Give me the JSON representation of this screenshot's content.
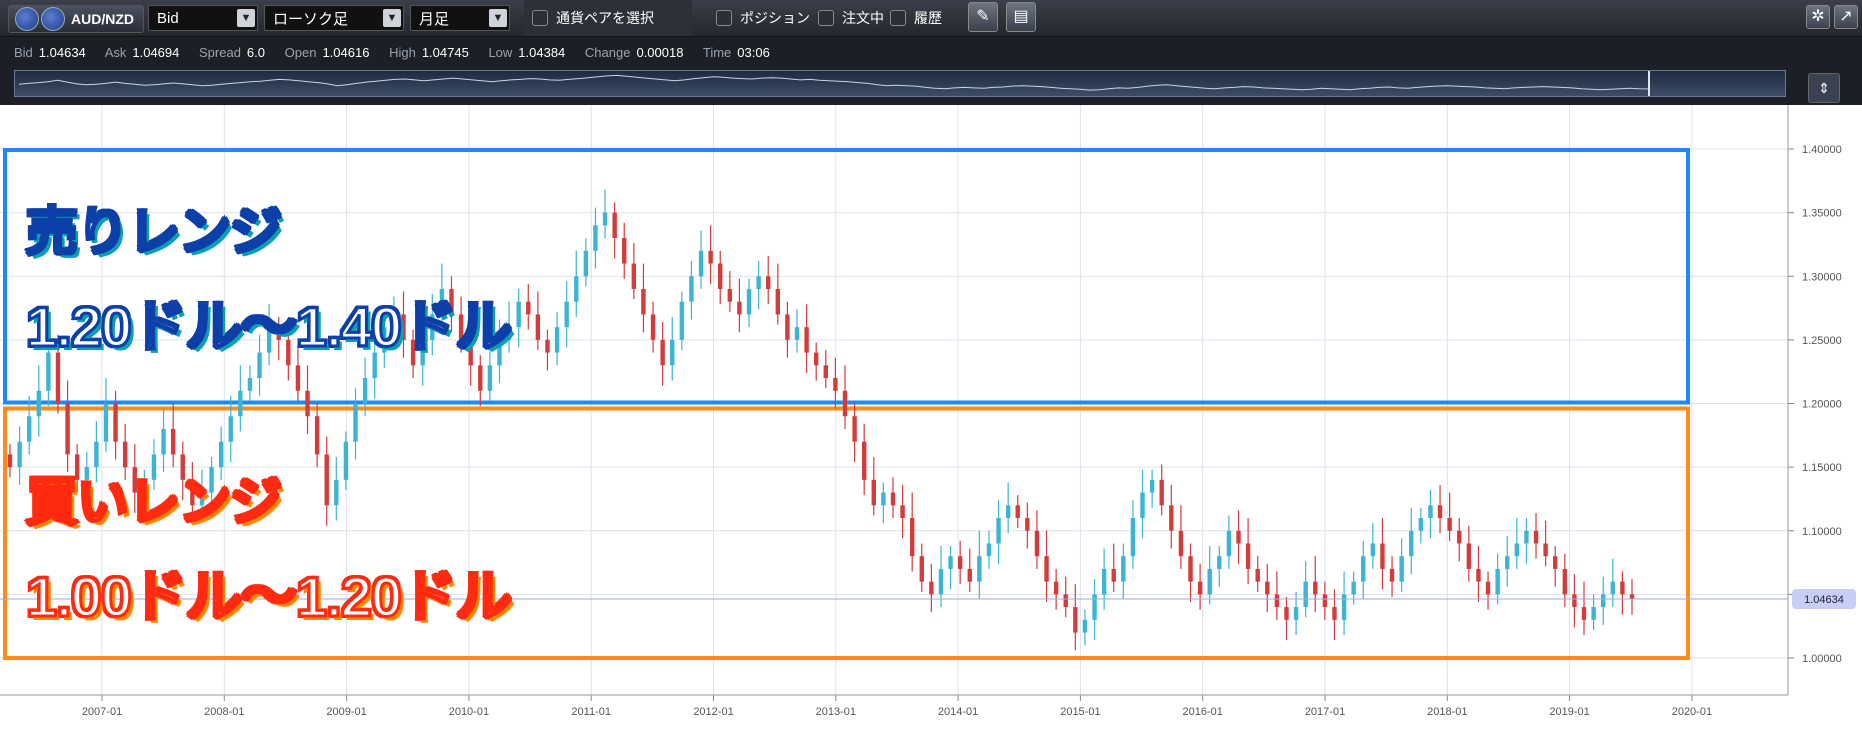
{
  "toolbar": {
    "pair": "AUD/NZD",
    "price_type": "Bid",
    "chart_type": "ローソク足",
    "timeframe": "月足",
    "select_pair": "通貨ペアを選択",
    "positions": "ポジション",
    "orders": "注文中",
    "history": "履歴"
  },
  "info": [
    {
      "label": "Bid",
      "value": "1.04634"
    },
    {
      "label": "Ask",
      "value": "1.04694"
    },
    {
      "label": "Spread",
      "value": "6.0"
    },
    {
      "label": "Open",
      "value": "1.04616"
    },
    {
      "label": "High",
      "value": "1.04745"
    },
    {
      "label": "Low",
      "value": "1.04384"
    },
    {
      "label": "Change",
      "value": "0.00018"
    },
    {
      "label": "Time",
      "value": "03:06"
    }
  ],
  "overlays": {
    "sell_title": "売りレンジ",
    "sell_range": "1.20ドル～1.40ドル",
    "buy_title": "買いレンジ",
    "buy_range": "1.00ドル～1.20ドル"
  },
  "colors": {
    "up": "#3cb4d4",
    "down": "#d23c3c",
    "sell_box": "#1e88ff",
    "buy_box": "#ff8c1a",
    "grid": "#dde2f0",
    "current_line": "#a0a8e0"
  },
  "chart_data": {
    "type": "candlestick",
    "ylim": [
      0.98,
      1.42
    ],
    "yticks": [
      "1.40000",
      "1.35000",
      "1.30000",
      "1.25000",
      "1.20000",
      "1.15000",
      "1.10000",
      "1.05000",
      "1.00000"
    ],
    "xticks": [
      "2007-01",
      "2008-01",
      "2009-01",
      "2010-01",
      "2011-01",
      "2012-01",
      "2013-01",
      "2014-01",
      "2015-01",
      "2016-01",
      "2017-01",
      "2018-01",
      "2019-01",
      "2020-01"
    ],
    "current_price": "1.04634",
    "sell_range": [
      1.2,
      1.4
    ],
    "buy_range": [
      1.0,
      1.2
    ],
    "monthly_close": [
      1.15,
      1.17,
      1.19,
      1.21,
      1.24,
      1.2,
      1.16,
      1.14,
      1.15,
      1.17,
      1.2,
      1.17,
      1.15,
      1.13,
      1.14,
      1.16,
      1.18,
      1.16,
      1.14,
      1.12,
      1.13,
      1.15,
      1.17,
      1.19,
      1.21,
      1.22,
      1.24,
      1.26,
      1.25,
      1.23,
      1.21,
      1.19,
      1.16,
      1.12,
      1.14,
      1.17,
      1.2,
      1.22,
      1.24,
      1.26,
      1.27,
      1.25,
      1.23,
      1.25,
      1.27,
      1.29,
      1.27,
      1.25,
      1.23,
      1.21,
      1.23,
      1.25,
      1.26,
      1.28,
      1.27,
      1.25,
      1.24,
      1.26,
      1.28,
      1.3,
      1.32,
      1.34,
      1.35,
      1.33,
      1.31,
      1.29,
      1.27,
      1.25,
      1.23,
      1.25,
      1.28,
      1.3,
      1.32,
      1.31,
      1.29,
      1.28,
      1.27,
      1.29,
      1.3,
      1.29,
      1.27,
      1.25,
      1.26,
      1.24,
      1.23,
      1.22,
      1.21,
      1.19,
      1.17,
      1.14,
      1.12,
      1.13,
      1.12,
      1.11,
      1.08,
      1.06,
      1.05,
      1.07,
      1.08,
      1.07,
      1.06,
      1.08,
      1.09,
      1.11,
      1.12,
      1.11,
      1.1,
      1.08,
      1.06,
      1.05,
      1.04,
      1.02,
      1.03,
      1.05,
      1.07,
      1.06,
      1.08,
      1.11,
      1.13,
      1.14,
      1.12,
      1.1,
      1.08,
      1.06,
      1.05,
      1.07,
      1.08,
      1.1,
      1.09,
      1.07,
      1.06,
      1.05,
      1.04,
      1.03,
      1.04,
      1.06,
      1.05,
      1.04,
      1.03,
      1.05,
      1.06,
      1.08,
      1.09,
      1.07,
      1.06,
      1.08,
      1.1,
      1.11,
      1.12,
      1.11,
      1.1,
      1.09,
      1.07,
      1.06,
      1.05,
      1.07,
      1.08,
      1.09,
      1.1,
      1.09,
      1.08,
      1.07,
      1.05,
      1.04,
      1.03,
      1.04,
      1.05,
      1.06,
      1.05,
      1.046
    ]
  }
}
